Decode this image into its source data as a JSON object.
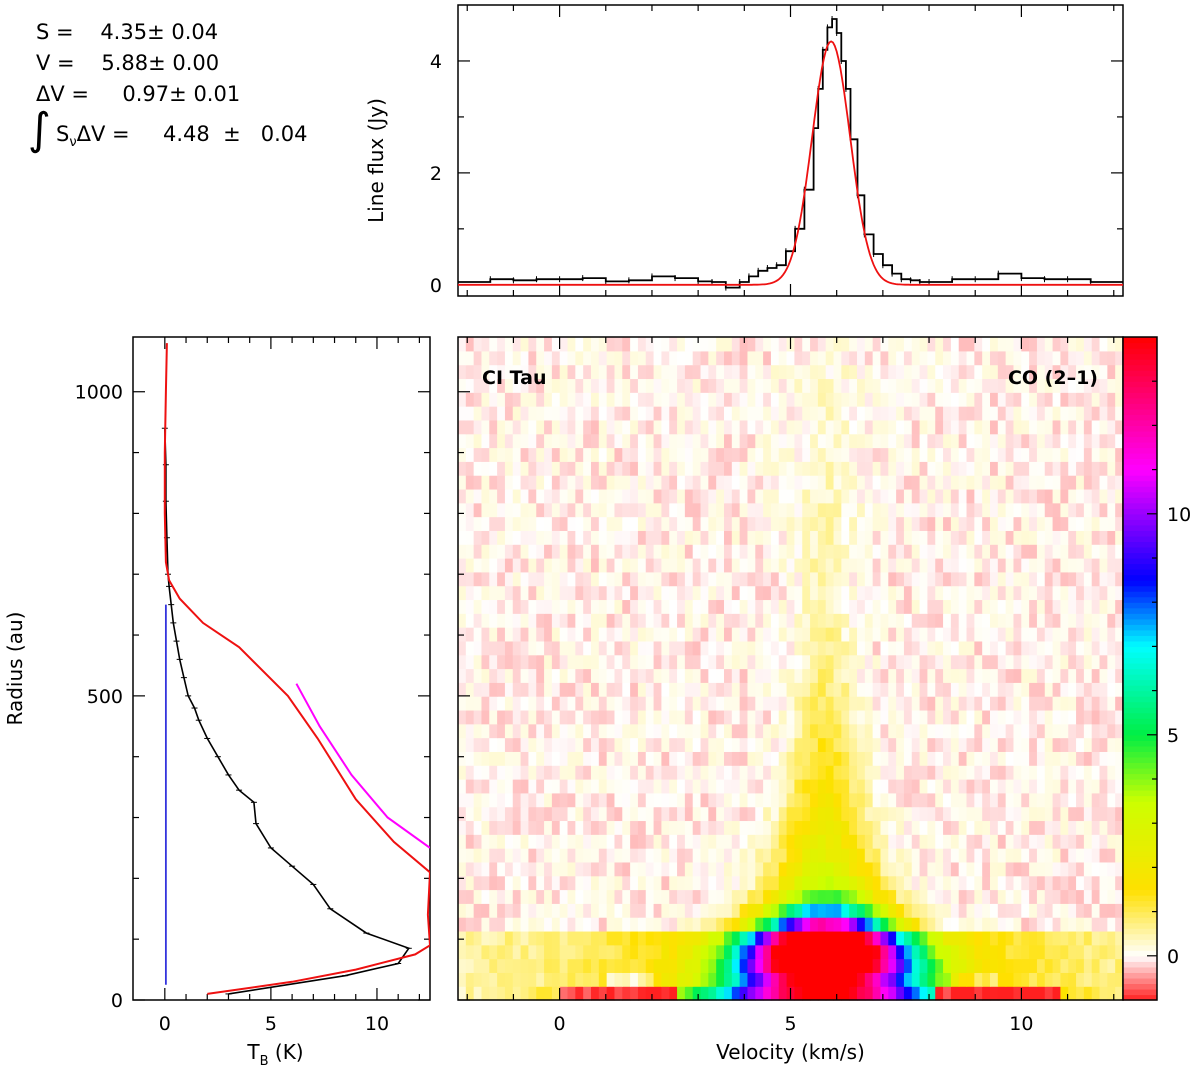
{
  "fit_parameters": {
    "S": "4.35",
    "S_err": "0.04",
    "V": "5.88",
    "V_err": "0.00",
    "dV": "0.97",
    "dV_err": "0.01",
    "integral": "4.48",
    "integral_err": "0.04"
  },
  "chart_data": [
    {
      "id": "spectrum",
      "type": "line",
      "xlabel": "",
      "ylabel": "Line flux (Jy)",
      "xlim": [
        -2.2,
        12.2
      ],
      "ylim": [
        -0.2,
        5.0
      ],
      "yticks": [
        0,
        2,
        4
      ],
      "colors": {
        "data": "#000000",
        "model": "#ee1111"
      },
      "series": [
        {
          "role": "data",
          "x": [
            -2.2,
            -1.5,
            -1.0,
            -0.5,
            0.0,
            0.5,
            1.0,
            1.5,
            2.0,
            2.5,
            3.0,
            3.3,
            3.6,
            3.9,
            4.1,
            4.3,
            4.5,
            4.7,
            4.9,
            5.1,
            5.3,
            5.5,
            5.6,
            5.7,
            5.8,
            5.9,
            6.0,
            6.1,
            6.2,
            6.3,
            6.45,
            6.6,
            6.8,
            7.0,
            7.2,
            7.4,
            7.6,
            7.8,
            8.0,
            8.5,
            9.0,
            9.5,
            10.0,
            10.5,
            11.0,
            11.5,
            12.2
          ],
          "y": [
            0.05,
            0.1,
            0.08,
            0.1,
            0.1,
            0.12,
            0.06,
            0.08,
            0.15,
            0.12,
            0.06,
            0.05,
            -0.05,
            0.05,
            0.15,
            0.25,
            0.3,
            0.35,
            0.6,
            1.0,
            1.7,
            2.8,
            3.5,
            4.2,
            4.6,
            4.75,
            4.5,
            4.0,
            3.5,
            2.6,
            1.6,
            0.9,
            0.55,
            0.35,
            0.2,
            0.1,
            0.08,
            0.05,
            0.05,
            0.1,
            0.1,
            0.2,
            0.12,
            0.1,
            0.1,
            0.05,
            0.05
          ]
        },
        {
          "role": "model",
          "type": "gaussian",
          "amplitude": 4.35,
          "center": 5.88,
          "fwhm": 0.97
        }
      ]
    },
    {
      "id": "radial_profile",
      "type": "line",
      "xlabel": "T",
      "xlabel_sub": "B",
      "xlabel_unit": "(K)",
      "ylabel": "Radius (au)",
      "xlim": [
        -1.5,
        12.5
      ],
      "ylim": [
        0,
        1090
      ],
      "xticks": [
        0,
        5,
        10
      ],
      "yticks": [
        0,
        500,
        1000
      ],
      "colors": {
        "data": "#000000",
        "model": "#ee1111",
        "model2": "#ff00ff",
        "vline": "#3333dd"
      },
      "series": [
        {
          "role": "data",
          "r": [
            10,
            40,
            60,
            85,
            110,
            150,
            190,
            220,
            250,
            290,
            325,
            345,
            370,
            400,
            430,
            460,
            480,
            500,
            530,
            560,
            590,
            620,
            650,
            680,
            700,
            760,
            820,
            880,
            940
          ],
          "t": [
            3.0,
            8.5,
            11.0,
            11.5,
            9.5,
            7.8,
            7.0,
            6.0,
            5.0,
            4.3,
            4.2,
            3.5,
            3.0,
            2.5,
            2.0,
            1.6,
            1.4,
            1.1,
            0.9,
            0.7,
            0.55,
            0.4,
            0.3,
            0.2,
            0.15,
            0.1,
            0.05,
            0.05,
            0.0
          ]
        },
        {
          "role": "model",
          "r": [
            10,
            30,
            50,
            75,
            90,
            140,
            210,
            260,
            330,
            430,
            500,
            580,
            620,
            660,
            690,
            720,
            800,
            900,
            1000,
            1080
          ],
          "t": [
            2.0,
            6.0,
            9.0,
            11.8,
            12.5,
            12.4,
            12.5,
            10.8,
            9.0,
            7.2,
            5.8,
            3.5,
            1.8,
            0.7,
            0.2,
            0.05,
            0.0,
            0.0,
            0.05,
            0.1
          ]
        },
        {
          "role": "model2",
          "r": [
            250,
            300,
            370,
            450,
            520
          ],
          "t": [
            12.5,
            10.5,
            8.8,
            7.3,
            6.2
          ]
        },
        {
          "role": "vline",
          "t": 0.05,
          "r_range": [
            25,
            650
          ]
        }
      ]
    },
    {
      "id": "pv_diagram",
      "type": "heatmap",
      "xlabel": "Velocity (km/s)",
      "ylabel": "",
      "xlim": [
        -2.2,
        12.2
      ],
      "ylim": [
        0,
        1090
      ],
      "xticks": [
        0,
        5,
        10
      ],
      "annotation_left": "CI Tau",
      "annotation_right": "CO (2–1)",
      "colorbar": {
        "range": [
          -1,
          14
        ],
        "ticks": [
          0,
          5,
          10
        ],
        "stops": [
          {
            "v": -1,
            "color": "#ff2020"
          },
          {
            "v": 0,
            "color": "#ffffff"
          },
          {
            "v": 1.5,
            "color": "#ffe000"
          },
          {
            "v": 3.5,
            "color": "#ccff00"
          },
          {
            "v": 5,
            "color": "#00ee44"
          },
          {
            "v": 7,
            "color": "#00ffff"
          },
          {
            "v": 8.5,
            "color": "#0000ff"
          },
          {
            "v": 11,
            "color": "#ff00ff"
          },
          {
            "v": 14,
            "color": "#ff0000"
          }
        ]
      }
    }
  ]
}
